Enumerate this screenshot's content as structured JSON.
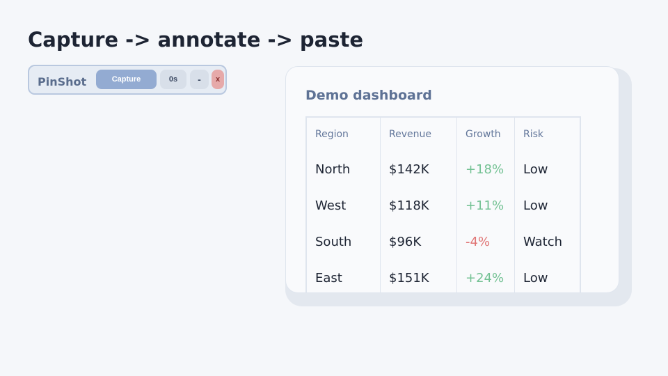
{
  "header": {
    "title": "Capture -> annotate -> paste"
  },
  "toolbar": {
    "app_name": "PinShot",
    "capture": "Capture",
    "timer": "0s",
    "minimize": "-",
    "close": "x"
  },
  "dashboard": {
    "title": "Demo dashboard",
    "table": {
      "columns": [
        "Region",
        "Revenue",
        "Growth",
        "Risk"
      ],
      "rows": [
        [
          "North",
          "$142K",
          "+18%",
          "Low"
        ],
        [
          "West",
          "$118K",
          "+11%",
          "Low"
        ],
        [
          "South",
          "$96K",
          "-4%",
          "Watch"
        ],
        [
          "East",
          "$151K",
          "+24%",
          "Low"
        ]
      ]
    }
  }
}
